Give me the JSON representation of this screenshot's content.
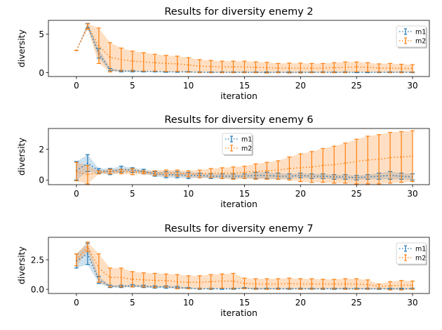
{
  "colors": {
    "m1": "#1f77b4",
    "m2": "#ff7f0e",
    "m1_band": "#1f77b4",
    "m2_band": "#ff7f0e"
  },
  "chart_data": [
    {
      "type": "line",
      "title": "Results for diversity enemy 2",
      "xlabel": "iteration",
      "ylabel": "diversity",
      "xlim": [
        -2.5,
        31.5
      ],
      "ylim": [
        -0.5,
        6.8
      ],
      "xticks": [
        0,
        5,
        10,
        15,
        20,
        25,
        30
      ],
      "yticks": [
        0,
        5
      ],
      "xtick_labels": [
        "0",
        "5",
        "10",
        "15",
        "20",
        "25",
        "30"
      ],
      "ytick_labels": [
        "0",
        "5"
      ],
      "legend": "top-right",
      "grid": false,
      "x": [
        0,
        1,
        2,
        3,
        4,
        5,
        6,
        7,
        8,
        9,
        10,
        11,
        12,
        13,
        14,
        15,
        16,
        17,
        18,
        19,
        20,
        21,
        22,
        23,
        24,
        25,
        26,
        27,
        28,
        29,
        30
      ],
      "series": [
        {
          "name": "m1",
          "values": [
            2.9,
            6.1,
            2.5,
            0.4,
            0.2,
            0.2,
            0.15,
            0.15,
            0.1,
            0.1,
            0.1,
            0.05,
            0.05,
            0.05,
            0.05,
            0.05,
            0.05,
            0.05,
            0.05,
            0.05,
            0.05,
            0.05,
            0.05,
            0.05,
            0.05,
            0.05,
            0.05,
            0.05,
            0.05,
            0.05,
            0.05
          ],
          "err": [
            0,
            0.3,
            0.6,
            0.15,
            0.1,
            0.1,
            0.05,
            0.05,
            0.05,
            0.05,
            0.05,
            0.05,
            0.05,
            0.05,
            0.05,
            0.05,
            0.05,
            0.05,
            0.05,
            0.05,
            0.05,
            0.05,
            0.05,
            0.05,
            0.05,
            0.05,
            0.05,
            0.05,
            0.05,
            0.05,
            0.05
          ]
        },
        {
          "name": "m2",
          "values": [
            2.9,
            6.0,
            3.5,
            2.0,
            1.7,
            1.5,
            1.4,
            1.3,
            1.2,
            1.15,
            1.0,
            0.85,
            0.8,
            0.75,
            0.75,
            0.75,
            0.7,
            0.65,
            0.6,
            0.6,
            0.6,
            0.6,
            0.6,
            0.65,
            0.7,
            0.75,
            0.7,
            0.6,
            0.6,
            0.55,
            0.55
          ],
          "err": [
            0,
            0.35,
            2.3,
            1.9,
            1.5,
            1.3,
            1.2,
            1.1,
            1.05,
            1.0,
            0.95,
            0.85,
            0.8,
            0.75,
            0.75,
            0.75,
            0.7,
            0.7,
            0.6,
            0.65,
            0.65,
            0.6,
            0.6,
            0.65,
            0.7,
            0.65,
            0.6,
            0.55,
            0.6,
            0.55,
            0.5
          ]
        }
      ]
    },
    {
      "type": "line",
      "title": "Results for diversity enemy 6",
      "xlabel": "iteration",
      "ylabel": "diversity",
      "xlim": [
        -2.5,
        31.5
      ],
      "ylim": [
        -0.3,
        3.35
      ],
      "xticks": [
        0,
        5,
        10,
        15,
        20,
        25,
        30
      ],
      "yticks": [
        0,
        2
      ],
      "xtick_labels": [
        "0",
        "5",
        "10",
        "15",
        "20",
        "25",
        "30"
      ],
      "ytick_labels": [
        "0",
        "2"
      ],
      "legend": "upper center",
      "grid": false,
      "x": [
        0,
        1,
        2,
        3,
        4,
        5,
        6,
        7,
        8,
        9,
        10,
        11,
        12,
        13,
        14,
        15,
        16,
        17,
        18,
        19,
        20,
        21,
        22,
        23,
        24,
        25,
        26,
        27,
        28,
        29,
        30
      ],
      "series": [
        {
          "name": "m1",
          "values": [
            0.6,
            1.1,
            0.6,
            0.55,
            0.7,
            0.65,
            0.55,
            0.4,
            0.35,
            0.35,
            0.3,
            0.3,
            0.25,
            0.25,
            0.25,
            0.25,
            0.3,
            0.3,
            0.25,
            0.25,
            0.3,
            0.25,
            0.25,
            0.2,
            0.2,
            0.15,
            0.2,
            0.25,
            0.3,
            0.25,
            0.2
          ],
          "err": [
            0.6,
            0.55,
            0.15,
            0.2,
            0.2,
            0.15,
            0.15,
            0.15,
            0.2,
            0.2,
            0.2,
            0.15,
            0.15,
            0.15,
            0.15,
            0.15,
            0.2,
            0.2,
            0.2,
            0.15,
            0.15,
            0.15,
            0.15,
            0.15,
            0.15,
            0.15,
            0.15,
            0.2,
            0.25,
            0.2,
            0.2
          ]
        },
        {
          "name": "m2",
          "values": [
            0.55,
            0.35,
            0.5,
            0.55,
            0.55,
            0.55,
            0.5,
            0.45,
            0.45,
            0.45,
            0.4,
            0.4,
            0.45,
            0.45,
            0.45,
            0.5,
            0.55,
            0.6,
            0.65,
            0.75,
            0.8,
            0.85,
            0.95,
            1.0,
            1.1,
            1.2,
            1.3,
            1.35,
            1.45,
            1.5,
            1.55
          ],
          "err": [
            0.6,
            0.6,
            0.1,
            0.15,
            0.15,
            0.2,
            0.1,
            0.15,
            0.2,
            0.2,
            0.2,
            0.25,
            0.3,
            0.35,
            0.4,
            0.4,
            0.5,
            0.55,
            0.6,
            0.75,
            0.9,
            1.0,
            1.1,
            1.2,
            1.3,
            1.45,
            1.55,
            1.6,
            1.65,
            1.65,
            1.65
          ]
        }
      ]
    },
    {
      "type": "line",
      "title": "Results for diversity enemy 7",
      "xlabel": "iteration",
      "ylabel": "diversity",
      "xlim": [
        -2.5,
        31.5
      ],
      "ylim": [
        -0.35,
        4.4
      ],
      "xticks": [
        0,
        5,
        10,
        15,
        20,
        25,
        30
      ],
      "yticks": [
        0.0,
        2.5
      ],
      "xtick_labels": [
        "0",
        "5",
        "10",
        "15",
        "20",
        "25",
        "30"
      ],
      "ytick_labels": [
        "0.0",
        "2.5"
      ],
      "legend": "top-right",
      "grid": false,
      "x": [
        0,
        1,
        2,
        3,
        4,
        5,
        6,
        7,
        8,
        9,
        10,
        11,
        12,
        13,
        14,
        15,
        16,
        17,
        18,
        19,
        20,
        21,
        22,
        23,
        24,
        25,
        26,
        27,
        28,
        29,
        30
      ],
      "series": [
        {
          "name": "m1",
          "values": [
            2.4,
            3.0,
            0.8,
            0.25,
            0.25,
            0.3,
            0.25,
            0.2,
            0.2,
            0.15,
            0.1,
            0.05,
            0.05,
            0.05,
            0.05,
            0.1,
            0.05,
            0.05,
            0.05,
            0.05,
            0.05,
            0.05,
            0.05,
            0.05,
            0.05,
            0.05,
            0.05,
            0.05,
            0.05,
            0.05,
            0.05
          ],
          "err": [
            0.6,
            0.9,
            0.3,
            0.1,
            0.1,
            0.1,
            0.1,
            0.1,
            0.1,
            0.1,
            0.05,
            0.05,
            0.05,
            0.05,
            0.05,
            0.05,
            0.05,
            0.05,
            0.05,
            0.05,
            0.05,
            0.05,
            0.05,
            0.05,
            0.05,
            0.05,
            0.05,
            0.05,
            0.05,
            0.05,
            0.05
          ]
        },
        {
          "name": "m2",
          "values": [
            2.5,
            3.6,
            1.8,
            1.0,
            1.0,
            0.85,
            0.8,
            0.75,
            0.75,
            0.65,
            0.6,
            0.6,
            0.65,
            0.7,
            0.7,
            0.5,
            0.45,
            0.45,
            0.45,
            0.5,
            0.45,
            0.45,
            0.45,
            0.45,
            0.45,
            0.45,
            0.4,
            0.25,
            0.3,
            0.35,
            0.35
          ],
          "err": [
            0.5,
            0.4,
            1.2,
            0.8,
            0.8,
            0.65,
            0.6,
            0.6,
            0.55,
            0.6,
            0.55,
            0.55,
            0.6,
            0.6,
            0.65,
            0.45,
            0.45,
            0.45,
            0.45,
            0.45,
            0.45,
            0.45,
            0.4,
            0.4,
            0.45,
            0.45,
            0.4,
            0.2,
            0.35,
            0.4,
            0.35
          ]
        }
      ]
    }
  ]
}
